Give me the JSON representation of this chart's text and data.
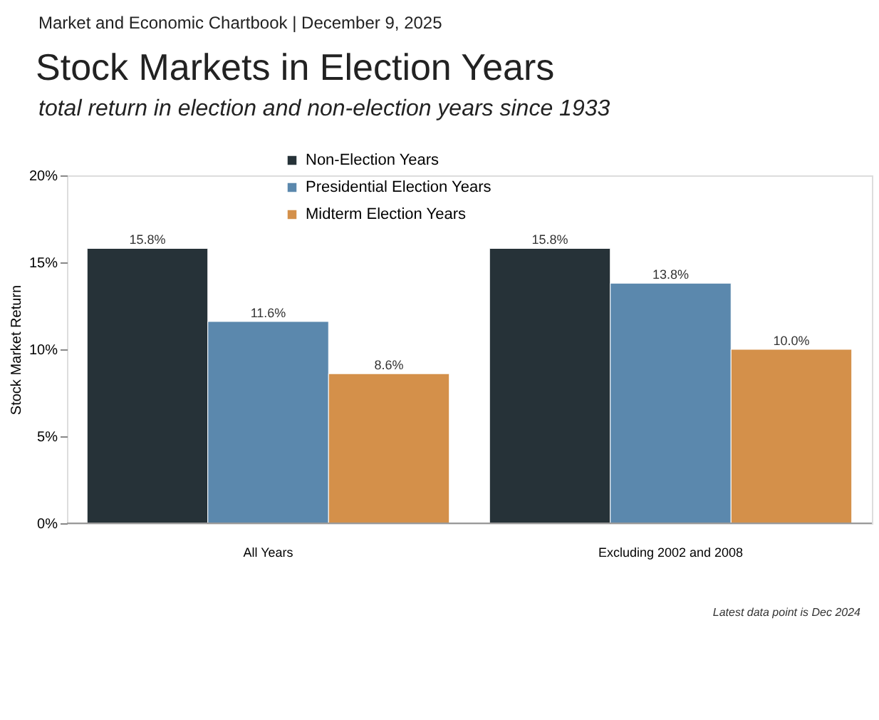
{
  "chart_data": {
    "type": "bar",
    "title": "Stock Markets in Election Years",
    "subtitle": "total return in election and non-election years since 1933",
    "ylabel": "Stock Market Return",
    "annotations": [
      "Market and Economic Chartbook | December 9, 2025",
      "Latest data point is Dec 2024"
    ],
    "categories": [
      "All Years",
      "Excluding 2002 and 2008"
    ],
    "series": [
      {
        "name": "Non-Election Years",
        "color": "#263238",
        "values": [
          15.8,
          15.8
        ],
        "value_labels": [
          "15.8%",
          "15.8%"
        ]
      },
      {
        "name": "Presidential Election Years",
        "color": "#5b88ad",
        "values": [
          11.6,
          13.8
        ],
        "value_labels": [
          "11.6%",
          "13.8%"
        ]
      },
      {
        "name": "Midterm Election Years",
        "color": "#d4904a",
        "values": [
          8.6,
          10.0
        ],
        "value_labels": [
          "8.6%",
          "10.0%"
        ]
      }
    ],
    "ylim": [
      0,
      20
    ],
    "yticks": [
      {
        "value": 0,
        "label": "0%"
      },
      {
        "value": 5,
        "label": "5%"
      },
      {
        "value": 10,
        "label": "10%"
      },
      {
        "value": 15,
        "label": "15%"
      },
      {
        "value": 20,
        "label": "20%"
      }
    ],
    "grid": false,
    "legend": "top"
  }
}
